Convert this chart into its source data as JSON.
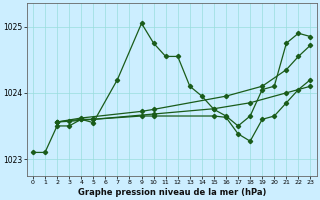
{
  "xlabel": "Graphe pression niveau de la mer (hPa)",
  "background_color": "#cceeff",
  "grid_color": "#99dddd",
  "line_color": "#1a5c1a",
  "ylim": [
    1022.75,
    1025.35
  ],
  "xlim": [
    -0.5,
    23.5
  ],
  "yticks": [
    1023,
    1024,
    1025
  ],
  "xticks": [
    0,
    1,
    2,
    3,
    4,
    5,
    6,
    7,
    8,
    9,
    10,
    11,
    12,
    13,
    14,
    15,
    16,
    17,
    18,
    19,
    20,
    21,
    22,
    23
  ],
  "series": [
    {
      "x": [
        0,
        1,
        2,
        3,
        4,
        5,
        7,
        9,
        10,
        11,
        12,
        13,
        14,
        15,
        16,
        17,
        18,
        19,
        20,
        21,
        22,
        23
      ],
      "y": [
        1023.1,
        1023.1,
        1023.5,
        1023.5,
        1023.6,
        1023.55,
        1024.2,
        1025.05,
        1024.75,
        1024.55,
        1024.55,
        1024.1,
        1023.95,
        1023.75,
        1023.65,
        1023.5,
        1023.65,
        1024.05,
        1024.1,
        1024.75,
        1024.9,
        1024.85
      ]
    },
    {
      "x": [
        2,
        5,
        10,
        15,
        20,
        23
      ],
      "y": [
        1023.55,
        1023.62,
        1023.7,
        1023.8,
        1023.95,
        1024.1
      ]
    },
    {
      "x": [
        2,
        5,
        10,
        15,
        20,
        23
      ],
      "y": [
        1023.55,
        1023.65,
        1023.8,
        1023.95,
        1024.2,
        1024.5
      ]
    },
    {
      "x": [
        2,
        4,
        9,
        10,
        15,
        16,
        17,
        18,
        19,
        20,
        21,
        22,
        23
      ],
      "y": [
        1023.55,
        1023.6,
        1023.65,
        1023.65,
        1023.65,
        1023.65,
        1023.4,
        1023.28,
        1023.6,
        1023.65,
        1023.85,
        1024.05,
        1024.2
      ]
    }
  ]
}
